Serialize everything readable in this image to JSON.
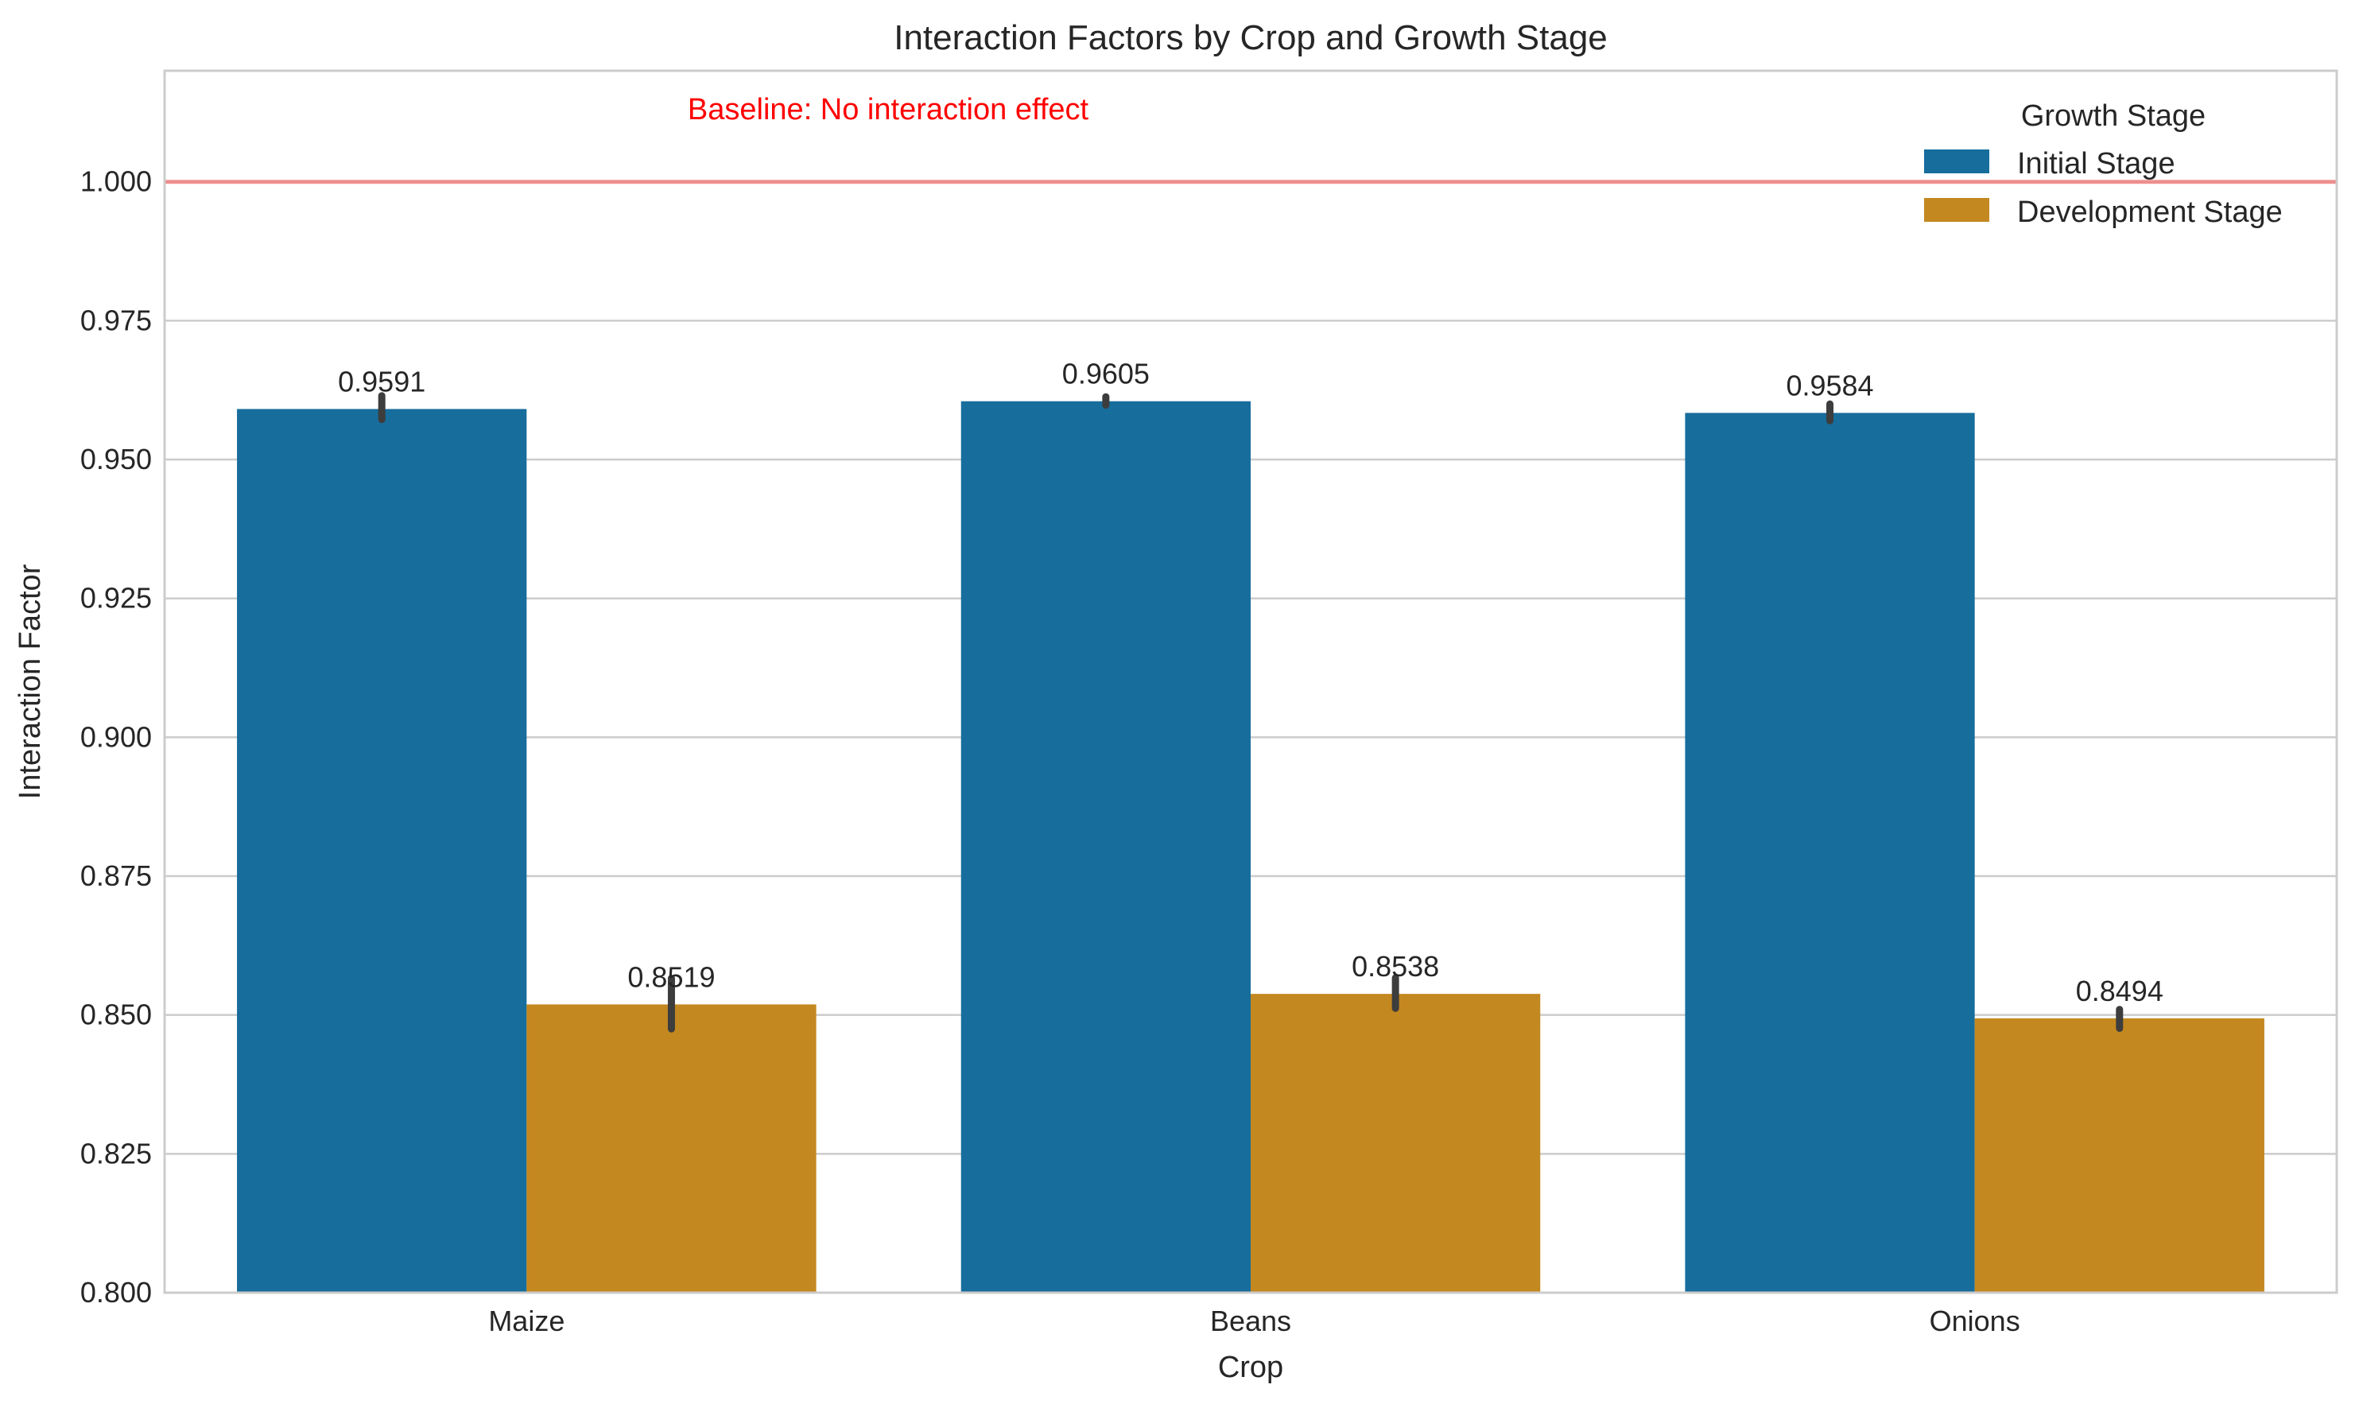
{
  "chart_data": {
    "type": "bar",
    "title": "Interaction Factors by Crop and Growth Stage",
    "xlabel": "Crop",
    "ylabel": "Interaction Factor",
    "categories": [
      "Maize",
      "Beans",
      "Onions"
    ],
    "ylim": [
      0.8,
      1.02
    ],
    "yticks": [
      0.8,
      0.825,
      0.85,
      0.875,
      0.9,
      0.925,
      0.95,
      0.975,
      1.0
    ],
    "ytick_labels": [
      "0.800",
      "0.825",
      "0.850",
      "0.875",
      "0.900",
      "0.925",
      "0.950",
      "0.975",
      "1.000"
    ],
    "grid": "horizontal",
    "legend": {
      "title": "Growth Stage",
      "placement": "top-right"
    },
    "series": [
      {
        "name": "Initial Stage",
        "color": "#176d9c",
        "values": [
          0.9591,
          0.9605,
          0.9584
        ],
        "labels": [
          "0.9591",
          "0.9605",
          "0.9584"
        ],
        "error_low": [
          0.9572,
          0.9598,
          0.957
        ],
        "error_high": [
          0.9615,
          0.9613,
          0.96
        ]
      },
      {
        "name": "Development Stage",
        "color": "#c38820",
        "values": [
          0.8519,
          0.8538,
          0.8494
        ],
        "labels": [
          "0.8519",
          "0.8538",
          "0.8494"
        ],
        "error_low": [
          0.8475,
          0.8512,
          0.8476
        ],
        "error_high": [
          0.8566,
          0.8567,
          0.851
        ]
      }
    ],
    "reference_line": {
      "y": 1.0,
      "color": "#f08080",
      "label": "Baseline: No interaction effect",
      "label_color": "#ff0000"
    }
  }
}
